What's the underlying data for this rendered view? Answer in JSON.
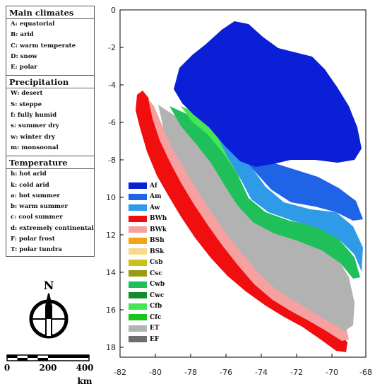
{
  "legend": {
    "sections": [
      {
        "title": "Main climates",
        "items": [
          "A: equatorial",
          "B: arid",
          "C: warm temperate",
          "D: snow",
          "E: polar"
        ]
      },
      {
        "title": "Precipitation",
        "items": [
          "W: desert",
          "S: steppe",
          "f: fully humid",
          "s: summer dry",
          "w: winter dry",
          "m: monsoonal"
        ]
      },
      {
        "title": "Temperature",
        "items": [
          "h: hot arid",
          "k: cold arid",
          "a: hot summer",
          "b: warm summer",
          "c: cool summer",
          "d: extremely continental",
          "F: polar frost",
          "T: polar tundra"
        ]
      }
    ]
  },
  "north_arrow": {
    "label": "N"
  },
  "scale_bar": {
    "ticks": [
      "0",
      "200",
      "400"
    ],
    "unit": "km"
  },
  "map": {
    "x_ticks": [
      "-82",
      "-80",
      "-78",
      "-76",
      "-74",
      "-72",
      "-70",
      "-68"
    ],
    "y_ticks": [
      "0",
      "-2",
      "-4",
      "-6",
      "-8",
      "-10",
      "-12",
      "-14",
      "-16",
      "-18"
    ],
    "climate_classes": [
      {
        "code": "Af",
        "color": "#0a1fd6"
      },
      {
        "code": "Am",
        "color": "#1f63e6"
      },
      {
        "code": "Aw",
        "color": "#2f9ae8"
      },
      {
        "code": "BWh",
        "color": "#f00e0e"
      },
      {
        "code": "BWk",
        "color": "#f7a0a0"
      },
      {
        "code": "BSh",
        "color": "#f5a315"
      },
      {
        "code": "BSk",
        "color": "#f7d98a"
      },
      {
        "code": "Csb",
        "color": "#c8c21a"
      },
      {
        "code": "Csc",
        "color": "#9a9a14"
      },
      {
        "code": "Cwb",
        "color": "#1fbf5a"
      },
      {
        "code": "Cwc",
        "color": "#148a2a"
      },
      {
        "code": "Cfb",
        "color": "#45e655"
      },
      {
        "code": "Cfc",
        "color": "#18c41a"
      },
      {
        "code": "ET",
        "color": "#b2b2b2"
      },
      {
        "code": "EF",
        "color": "#6e6e6e"
      }
    ]
  }
}
